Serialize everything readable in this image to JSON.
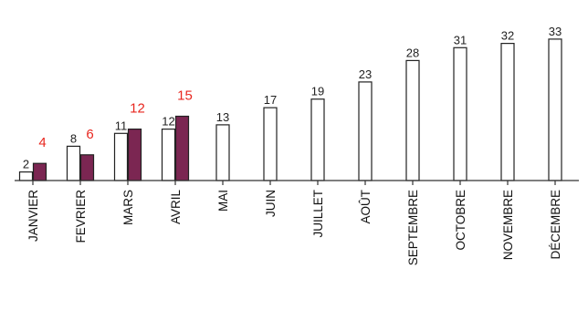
{
  "chart_data": {
    "type": "bar",
    "categories": [
      "JANVIER",
      "FEVRIER",
      "MARS",
      "AVRIL",
      "MAI",
      "JUIN",
      "JUILLET",
      "AOÛT",
      "SEPTEMBRE",
      "OCTOBRE",
      "NOVEMBRE",
      "DÉCEMBRE"
    ],
    "series": [
      {
        "values": [
          2,
          8,
          11,
          12,
          13,
          17,
          19,
          23,
          28,
          31,
          32,
          33
        ],
        "color": "#ffffff",
        "label_color": "#222222"
      },
      {
        "values": [
          4,
          6,
          12,
          15,
          null,
          null,
          null,
          null,
          null,
          null,
          null,
          null
        ],
        "color": "#7b2652",
        "label_color": "#e8271f"
      }
    ],
    "ylim": [
      0,
      35
    ],
    "grid": false,
    "legend": "none",
    "xlabel": "",
    "ylabel": ""
  }
}
